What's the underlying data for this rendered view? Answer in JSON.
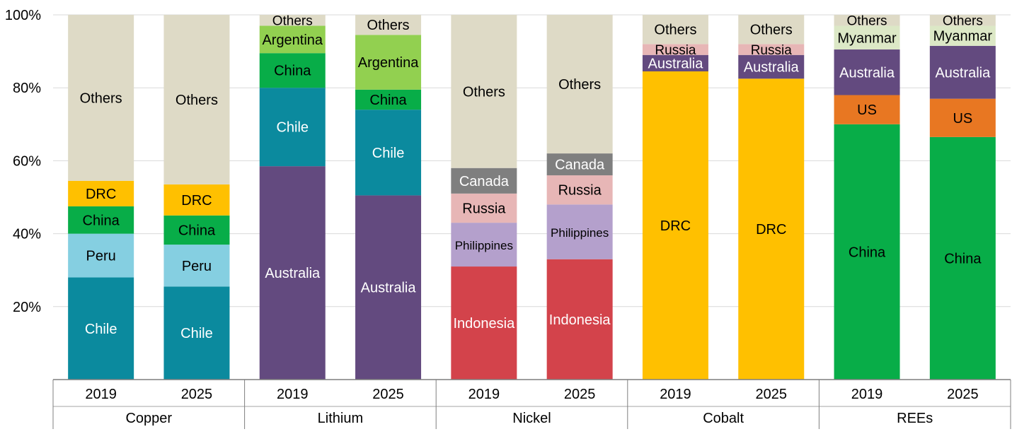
{
  "chart_data": {
    "type": "stacked-bar",
    "title": "",
    "xlabel": "",
    "ylabel": "",
    "ylim": [
      0,
      100
    ],
    "y_ticks": [
      "20%",
      "40%",
      "60%",
      "80%",
      "100%"
    ],
    "y_tick_values": [
      20,
      40,
      60,
      80,
      100
    ],
    "grid": true,
    "colors": {
      "Chile_copper": "#0b8a9e",
      "Peru": "#85cfe1",
      "China_copper": "#08ad48",
      "DRC": "#ffc000",
      "Others": "#dedac6",
      "Australia": "#634a7f",
      "Chile_lithium": "#0b8a9e",
      "China_lithium": "#08ad48",
      "Argentina": "#92d050",
      "Indonesia": "#d3434b",
      "Philippines": "#b4a0cc",
      "Russia": "#e7b6b6",
      "Canada": "#7f7f7f",
      "US": "#e87722",
      "Myanmar": "#dce8c6",
      "China_rees": "#08ad48"
    },
    "groups": [
      {
        "name": "Copper",
        "bars": [
          {
            "year": "2019",
            "segments": [
              {
                "label": "Chile",
                "value": 28,
                "color": "#0b8a9e",
                "text_color": "#ffffff"
              },
              {
                "label": "Peru",
                "value": 12,
                "color": "#85cfe1",
                "text_color": "#000000"
              },
              {
                "label": "China",
                "value": 7.5,
                "color": "#08ad48",
                "text_color": "#000000"
              },
              {
                "label": "DRC",
                "value": 7,
                "color": "#ffc000",
                "text_color": "#000000"
              },
              {
                "label": "Others",
                "value": 45.5,
                "color": "#dedac6",
                "text_color": "#000000"
              }
            ]
          },
          {
            "year": "2025",
            "segments": [
              {
                "label": "Chile",
                "value": 25.5,
                "color": "#0b8a9e",
                "text_color": "#ffffff"
              },
              {
                "label": "Peru",
                "value": 11.5,
                "color": "#85cfe1",
                "text_color": "#000000"
              },
              {
                "label": "China",
                "value": 8,
                "color": "#08ad48",
                "text_color": "#000000"
              },
              {
                "label": "DRC",
                "value": 8.5,
                "color": "#ffc000",
                "text_color": "#000000"
              },
              {
                "label": "Others",
                "value": 46.5,
                "color": "#dedac6",
                "text_color": "#000000"
              }
            ]
          }
        ]
      },
      {
        "name": "Lithium",
        "bars": [
          {
            "year": "2019",
            "segments": [
              {
                "label": "Australia",
                "value": 58.5,
                "color": "#634a7f",
                "text_color": "#ffffff"
              },
              {
                "label": "Chile",
                "value": 21.5,
                "color": "#0b8a9e",
                "text_color": "#ffffff"
              },
              {
                "label": "China",
                "value": 9.5,
                "color": "#08ad48",
                "text_color": "#000000"
              },
              {
                "label": "Argentina",
                "value": 7.5,
                "color": "#92d050",
                "text_color": "#000000"
              },
              {
                "label": "Others",
                "value": 3,
                "color": "#dedac6",
                "text_color": "#000000"
              }
            ]
          },
          {
            "year": "2025",
            "segments": [
              {
                "label": "Australia",
                "value": 50.5,
                "color": "#634a7f",
                "text_color": "#ffffff"
              },
              {
                "label": "Chile",
                "value": 23.5,
                "color": "#0b8a9e",
                "text_color": "#ffffff"
              },
              {
                "label": "China",
                "value": 5.5,
                "color": "#08ad48",
                "text_color": "#000000"
              },
              {
                "label": "Argentina",
                "value": 15,
                "color": "#92d050",
                "text_color": "#000000"
              },
              {
                "label": "Others",
                "value": 5.5,
                "color": "#dedac6",
                "text_color": "#000000"
              }
            ]
          }
        ]
      },
      {
        "name": "Nickel",
        "bars": [
          {
            "year": "2019",
            "segments": [
              {
                "label": "Indonesia",
                "value": 31,
                "color": "#d3434b",
                "text_color": "#ffffff"
              },
              {
                "label": "Philippines",
                "value": 12,
                "color": "#b4a0cc",
                "text_color": "#000000"
              },
              {
                "label": "Russia",
                "value": 8,
                "color": "#e7b6b6",
                "text_color": "#000000"
              },
              {
                "label": "Canada",
                "value": 7,
                "color": "#7f7f7f",
                "text_color": "#ffffff"
              },
              {
                "label": "Others",
                "value": 42,
                "color": "#dedac6",
                "text_color": "#000000"
              }
            ]
          },
          {
            "year": "2025",
            "segments": [
              {
                "label": "Indonesia",
                "value": 33,
                "color": "#d3434b",
                "text_color": "#ffffff"
              },
              {
                "label": "Philippines",
                "value": 15,
                "color": "#b4a0cc",
                "text_color": "#000000"
              },
              {
                "label": "Russia",
                "value": 8,
                "color": "#e7b6b6",
                "text_color": "#000000"
              },
              {
                "label": "Canada",
                "value": 6,
                "color": "#7f7f7f",
                "text_color": "#ffffff"
              },
              {
                "label": "Others",
                "value": 38,
                "color": "#dedac6",
                "text_color": "#000000"
              }
            ]
          }
        ]
      },
      {
        "name": "Cobalt",
        "bars": [
          {
            "year": "2019",
            "segments": [
              {
                "label": "DRC",
                "value": 84.5,
                "color": "#ffc000",
                "text_color": "#000000"
              },
              {
                "label": "Australia",
                "value": 4.5,
                "color": "#634a7f",
                "text_color": "#ffffff"
              },
              {
                "label": "Russia",
                "value": 3,
                "color": "#e7b6b6",
                "text_color": "#000000"
              },
              {
                "label": "Others",
                "value": 8,
                "color": "#dedac6",
                "text_color": "#000000"
              }
            ]
          },
          {
            "year": "2025",
            "segments": [
              {
                "label": "DRC",
                "value": 82.5,
                "color": "#ffc000",
                "text_color": "#000000"
              },
              {
                "label": "Australia",
                "value": 6.5,
                "color": "#634a7f",
                "text_color": "#ffffff"
              },
              {
                "label": "Russia",
                "value": 3,
                "color": "#e7b6b6",
                "text_color": "#000000"
              },
              {
                "label": "Others",
                "value": 8,
                "color": "#dedac6",
                "text_color": "#000000"
              }
            ]
          }
        ]
      },
      {
        "name": "REEs",
        "bars": [
          {
            "year": "2019",
            "segments": [
              {
                "label": "China",
                "value": 70,
                "color": "#08ad48",
                "text_color": "#000000"
              },
              {
                "label": "US",
                "value": 8,
                "color": "#e87722",
                "text_color": "#000000"
              },
              {
                "label": "Australia",
                "value": 12.5,
                "color": "#634a7f",
                "text_color": "#ffffff"
              },
              {
                "label": "Myanmar",
                "value": 6.5,
                "color": "#dce8c6",
                "text_color": "#000000"
              },
              {
                "label": "Others",
                "value": 3,
                "color": "#dedac6",
                "text_color": "#000000"
              }
            ]
          },
          {
            "year": "2025",
            "segments": [
              {
                "label": "China",
                "value": 66.5,
                "color": "#08ad48",
                "text_color": "#000000"
              },
              {
                "label": "US",
                "value": 10.5,
                "color": "#e87722",
                "text_color": "#000000"
              },
              {
                "label": "Australia",
                "value": 14.5,
                "color": "#634a7f",
                "text_color": "#ffffff"
              },
              {
                "label": "Myanmar",
                "value": 5.5,
                "color": "#dce8c6",
                "text_color": "#000000"
              },
              {
                "label": "Others",
                "value": 3,
                "color": "#dedac6",
                "text_color": "#000000"
              }
            ]
          }
        ]
      }
    ]
  }
}
